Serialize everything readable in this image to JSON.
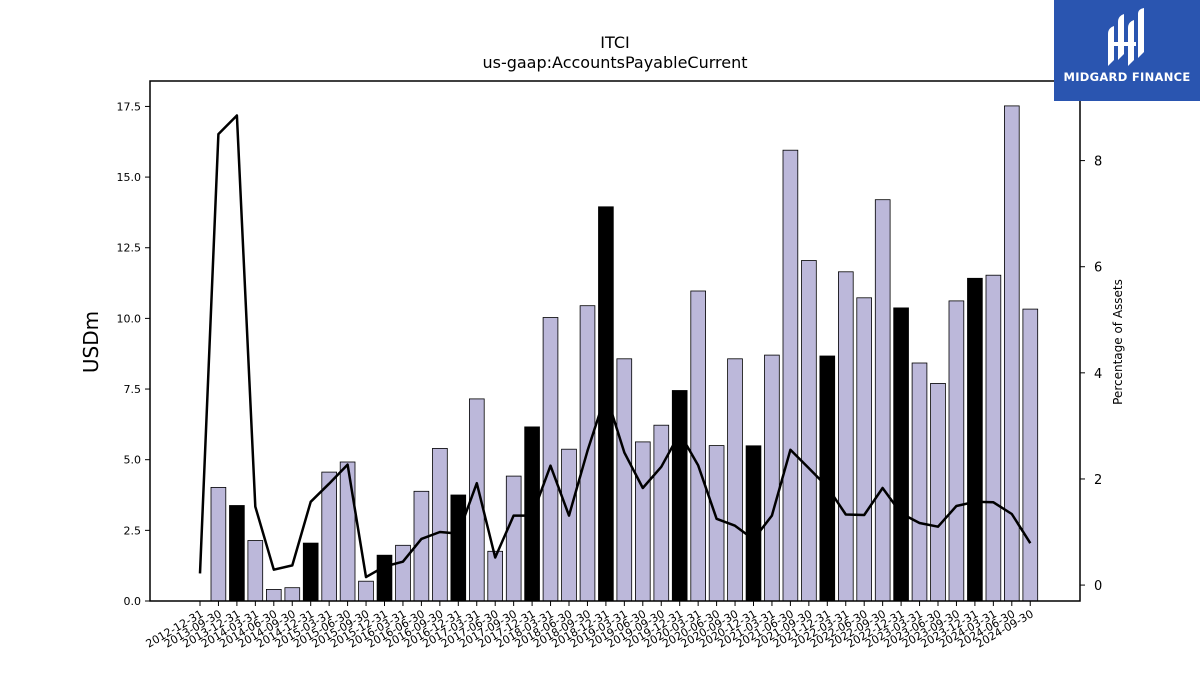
{
  "chart_data": {
    "type": "bar",
    "title": "ITCI",
    "subtitle": "us-gaap:AccountsPayableCurrent",
    "ylabel": "USDm",
    "ylabel_right": "Percentage of Assets",
    "ylim": [
      0,
      18.4
    ],
    "ylim_right": [
      -0.3,
      9.5
    ],
    "yticks": [
      0.0,
      2.5,
      5.0,
      7.5,
      10.0,
      12.5,
      15.0,
      17.5
    ],
    "yticks_right": [
      0,
      2,
      4,
      6,
      8
    ],
    "categories": [
      "2012-12-31",
      "2013-09-30",
      "2013-12-31",
      "2014-03-31",
      "2014-06-30",
      "2014-09-30",
      "2014-12-31",
      "2015-03-31",
      "2015-06-30",
      "2015-09-30",
      "2015-12-31",
      "2016-03-31",
      "2016-06-30",
      "2016-09-30",
      "2016-12-31",
      "2017-03-31",
      "2017-06-30",
      "2017-09-30",
      "2017-12-31",
      "2018-03-31",
      "2018-06-30",
      "2018-09-30",
      "2018-12-31",
      "2019-03-31",
      "2019-06-30",
      "2019-09-30",
      "2019-12-31",
      "2020-03-31",
      "2020-06-30",
      "2020-09-30",
      "2020-12-31",
      "2021-03-31",
      "2021-06-30",
      "2021-09-30",
      "2021-12-31",
      "2022-03-31",
      "2022-06-30",
      "2022-09-30",
      "2022-12-31",
      "2023-03-31",
      "2023-06-30",
      "2023-09-30",
      "2023-12-31",
      "2024-03-31",
      "2024-06-30",
      "2024-09-30"
    ],
    "series": [
      {
        "type": "bar",
        "values": [
          null,
          4.02,
          3.38,
          2.14,
          0.41,
          0.47,
          2.05,
          4.56,
          4.92,
          0.7,
          1.62,
          1.97,
          3.88,
          5.4,
          3.75,
          7.15,
          1.76,
          4.42,
          6.16,
          10.03,
          5.37,
          10.45,
          13.95,
          8.57,
          5.63,
          6.22,
          7.45,
          10.97,
          5.5,
          8.57,
          5.49,
          8.7,
          15.95,
          12.05,
          8.67,
          11.65,
          10.73,
          14.2,
          10.37,
          8.42,
          7.7,
          10.62,
          11.42,
          11.53,
          17.52,
          10.33
        ],
        "highlight_quarter": "Q4",
        "colors": {
          "fill": "#bcb8da",
          "highlight": "#000000",
          "edge": "#000000"
        }
      },
      {
        "type": "line",
        "axis": "right",
        "values": [
          0.22,
          8.5,
          8.85,
          1.48,
          0.29,
          0.37,
          1.57,
          1.91,
          2.27,
          0.15,
          0.35,
          0.44,
          0.87,
          1.0,
          0.97,
          1.92,
          0.52,
          1.31,
          1.31,
          2.25,
          1.31,
          2.53,
          3.6,
          2.5,
          1.83,
          2.23,
          2.86,
          2.26,
          1.25,
          1.12,
          0.86,
          1.31,
          2.55,
          2.2,
          1.85,
          1.33,
          1.32,
          1.83,
          1.35,
          1.17,
          1.1,
          1.49,
          1.57,
          1.56,
          1.34,
          0.79
        ],
        "color": "#000000"
      }
    ],
    "grid": false,
    "legend": "none"
  },
  "logo": {
    "text": "MIDGARD FINANCE",
    "color": "#2a55b0"
  }
}
